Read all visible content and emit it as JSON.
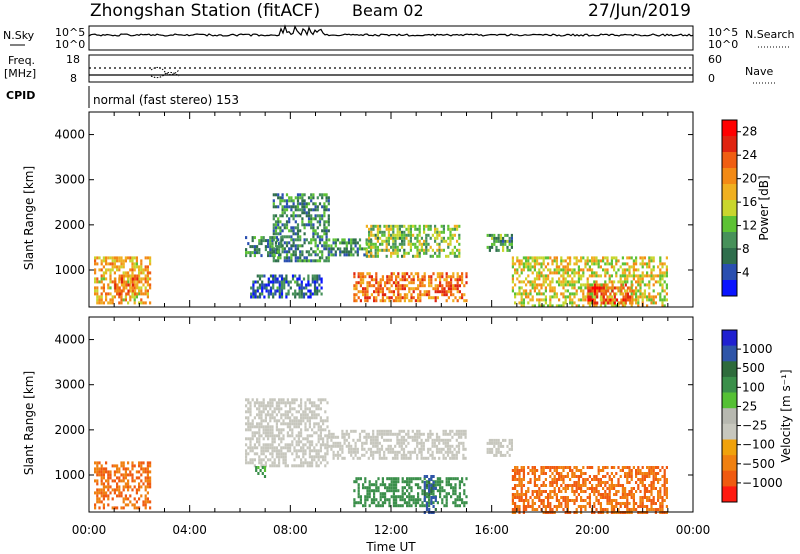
{
  "header": {
    "station": "Zhongshan Station (fitACF)",
    "beam": "Beam 02",
    "date": "27/Jun/2019"
  },
  "strips": {
    "nsky_label": "N.Sky",
    "nsky_ticks": [
      "10^5",
      "10^0"
    ],
    "nsearch_label": "N.Search",
    "nsearch_ticks": [
      "10^5",
      "10^0"
    ],
    "freq_label_line1": "Freq.",
    "freq_label_line2": "[MHz]",
    "freq_ticks": [
      "18",
      "8"
    ],
    "nave_label": "Nave",
    "nave_ticks": [
      "60",
      "0"
    ],
    "cpid_label": "CPID",
    "cpid_text": "normal (fast stereo) 153"
  },
  "chart_data": [
    {
      "type": "heatmap",
      "panel": "power",
      "ylabel": "Slant Range [km]",
      "xlabel": "",
      "xlim_hours": [
        0,
        24
      ],
      "ylim": [
        180,
        4500
      ],
      "yticks": [
        "1000",
        "2000",
        "3000",
        "4000"
      ],
      "colorbar": {
        "label": "Power [dB]",
        "ticks": [
          "4",
          "8",
          "12",
          "16",
          "20",
          "24",
          "28"
        ],
        "range": [
          0,
          30
        ],
        "colors": [
          "#0a14ff",
          "#2a4fb0",
          "#2f6e4c",
          "#47915a",
          "#5dc234",
          "#c9d62e",
          "#f0b020",
          "#f38a15",
          "#f05e12",
          "#e02410",
          "#ff0000"
        ]
      },
      "echo_regions": [
        {
          "t": [
            0.2,
            2.4
          ],
          "r": [
            300,
            1300
          ],
          "value": 18
        },
        {
          "t": [
            1.0,
            1.9
          ],
          "r": [
            450,
            900
          ],
          "value": 22
        },
        {
          "t": [
            6.2,
            7.6
          ],
          "r": [
            1300,
            1750
          ],
          "value": 8
        },
        {
          "t": [
            7.3,
            9.5
          ],
          "r": [
            1200,
            2700
          ],
          "value": 8
        },
        {
          "t": [
            6.4,
            9.2
          ],
          "r": [
            400,
            900
          ],
          "value": 6
        },
        {
          "t": [
            9.5,
            11.2
          ],
          "r": [
            1350,
            1700
          ],
          "value": 8
        },
        {
          "t": [
            11.0,
            14.7
          ],
          "r": [
            1300,
            2000
          ],
          "value": 13
        },
        {
          "t": [
            10.5,
            15.0
          ],
          "r": [
            300,
            950
          ],
          "value": 22
        },
        {
          "t": [
            15.8,
            16.8
          ],
          "r": [
            1450,
            1800
          ],
          "value": 10
        },
        {
          "t": [
            16.8,
            23.0
          ],
          "r": [
            200,
            1300
          ],
          "value": 16
        },
        {
          "t": [
            19.8,
            21.6
          ],
          "r": [
            250,
            700
          ],
          "value": 24
        }
      ]
    },
    {
      "type": "heatmap",
      "panel": "velocity",
      "ylabel": "Slant Range [km]",
      "xlabel": "Time UT",
      "xlim_hours": [
        0,
        24
      ],
      "xticks": [
        "00:00",
        "04:00",
        "08:00",
        "12:00",
        "16:00",
        "20:00",
        "00:00"
      ],
      "ylim": [
        180,
        4500
      ],
      "yticks": [
        "1000",
        "2000",
        "3000",
        "4000"
      ],
      "colorbar": {
        "label": "Velocity [m s⁻¹]",
        "ticks": [
          "1000",
          "500",
          "100",
          "25",
          "−25",
          "−100",
          "−500",
          "−1000"
        ],
        "colors": [
          "#2020d0",
          "#2f55a8",
          "#2e6b3c",
          "#3a8f4a",
          "#55c034",
          "#b7b8b0",
          "#c7c7be",
          "#f0a20c",
          "#f08010",
          "#f05a10",
          "#ff1a10"
        ]
      },
      "echo_regions": [
        {
          "t": [
            0.2,
            2.4
          ],
          "r": [
            300,
            1300
          ],
          "value": -300
        },
        {
          "t": [
            6.2,
            9.5
          ],
          "r": [
            1200,
            2700
          ],
          "value": 0
        },
        {
          "t": [
            6.6,
            7.0
          ],
          "r": [
            1000,
            1200
          ],
          "value": 150
        },
        {
          "t": [
            9.5,
            15.0
          ],
          "r": [
            1350,
            2000
          ],
          "value": 0
        },
        {
          "t": [
            10.5,
            15.0
          ],
          "r": [
            350,
            950
          ],
          "value": 200
        },
        {
          "t": [
            13.3,
            13.8
          ],
          "r": [
            200,
            1000
          ],
          "value": 600
        },
        {
          "t": [
            15.8,
            16.8
          ],
          "r": [
            1450,
            1800
          ],
          "value": 0
        },
        {
          "t": [
            16.8,
            23.0
          ],
          "r": [
            200,
            1200
          ],
          "value": -300
        }
      ]
    }
  ]
}
